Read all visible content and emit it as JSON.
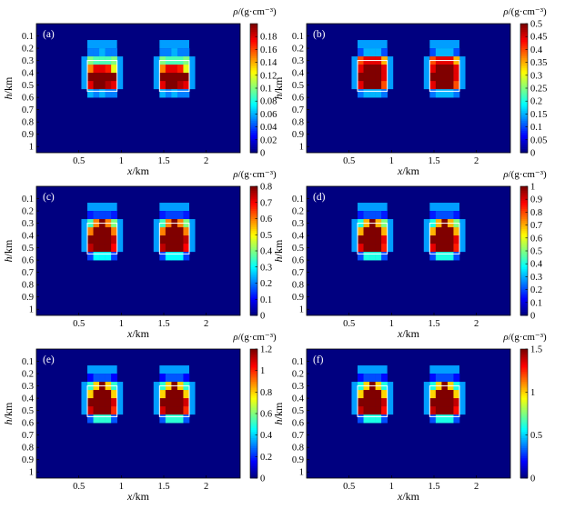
{
  "chart_data": {
    "type": "heatmap",
    "colormap": "jet",
    "grid": false,
    "xlabel": "x/km",
    "ylabel": "h/km",
    "x_ticks": [
      0.5,
      1,
      1.5,
      2
    ],
    "x_tick_labels": [
      "0.5",
      "1",
      "1.5",
      "2"
    ],
    "y_ticks": [
      0.1,
      0.2,
      0.3,
      0.4,
      0.5,
      0.6,
      0.7,
      0.8,
      0.9,
      1
    ],
    "y_tick_labels": [
      "0.1",
      "0.2",
      "0.3",
      "0.4",
      "0.5",
      "0.6",
      "0.7",
      "0.8",
      "0.9",
      "1"
    ],
    "xlim": [
      0,
      2.4
    ],
    "ylim": [
      1.05,
      0
    ],
    "colorbar_label": "ρ/(g·cm⁻³)",
    "model_boxes": [
      {
        "x": [
          0.6,
          0.95
        ],
        "h": [
          0.3,
          0.55
        ]
      },
      {
        "x": [
          1.45,
          1.8
        ],
        "h": [
          0.3,
          0.55
        ]
      }
    ],
    "panels": [
      {
        "label": "(a)",
        "clim": [
          0,
          0.2
        ],
        "colorbar_ticks": [
          0,
          0.02,
          0.04,
          0.06,
          0.08,
          0.1,
          0.12,
          0.14,
          0.16,
          0.18
        ],
        "colorbar_tick_labels": [
          "0",
          "0.02",
          "0.04",
          "0.06",
          "0.08",
          "0.1",
          "0.12",
          "0.14",
          "0.16",
          "0.18"
        ],
        "anomalies": [
          {
            "x0": 0.6,
            "x1": 0.95,
            "h0": 0.2,
            "h1": 0.6,
            "rows": [
              [
                0.05,
                0.05,
                0.06,
                0.05,
                0.05
              ],
              [
                0.1,
                0.09,
                0.09,
                0.09,
                0.1
              ],
              [
                0.15,
                0.18,
                0.18,
                0.17,
                0.12
              ],
              [
                0.2,
                0.2,
                0.2,
                0.2,
                0.2
              ],
              [
                0.18,
                0.2,
                0.2,
                0.19,
                0.18
              ],
              [
                0.06,
                0.05,
                0.06,
                0.05,
                0.05
              ]
            ]
          },
          {
            "x0": 1.45,
            "x1": 1.8,
            "h0": 0.2,
            "h1": 0.6,
            "rows": [
              [
                0.05,
                0.05,
                0.06,
                0.05,
                0.05
              ],
              [
                0.1,
                0.09,
                0.09,
                0.09,
                0.1
              ],
              [
                0.15,
                0.18,
                0.18,
                0.17,
                0.12
              ],
              [
                0.2,
                0.2,
                0.2,
                0.2,
                0.2
              ],
              [
                0.18,
                0.2,
                0.2,
                0.19,
                0.18
              ],
              [
                0.06,
                0.05,
                0.06,
                0.05,
                0.05
              ]
            ]
          }
        ]
      },
      {
        "label": "(b)",
        "clim": [
          0,
          0.5
        ],
        "colorbar_ticks": [
          0,
          0.05,
          0.1,
          0.15,
          0.2,
          0.25,
          0.3,
          0.35,
          0.4,
          0.45,
          0.5
        ],
        "colorbar_tick_labels": [
          "0",
          "0.05",
          "0.1",
          "0.15",
          "0.2",
          "0.25",
          "0.3",
          "0.35",
          "0.4",
          "0.45",
          "0.5"
        ],
        "anomalies": [
          {
            "x0": 0.6,
            "x1": 0.95,
            "h0": 0.2,
            "h1": 0.6,
            "rows": [
              [
                0.1,
                0.15,
                0.15,
                0.15,
                0.1
              ],
              [
                0.4,
                0.45,
                0.45,
                0.45,
                0.35
              ],
              [
                0.45,
                0.5,
                0.5,
                0.5,
                0.45
              ],
              [
                0.5,
                0.5,
                0.5,
                0.5,
                0.45
              ],
              [
                0.45,
                0.5,
                0.5,
                0.5,
                0.4
              ],
              [
                0.12,
                0.15,
                0.15,
                0.15,
                0.12
              ]
            ]
          },
          {
            "x0": 1.45,
            "x1": 1.8,
            "h0": 0.2,
            "h1": 0.6,
            "rows": [
              [
                0.1,
                0.15,
                0.15,
                0.15,
                0.1
              ],
              [
                0.4,
                0.45,
                0.45,
                0.45,
                0.35
              ],
              [
                0.45,
                0.5,
                0.5,
                0.5,
                0.45
              ],
              [
                0.5,
                0.5,
                0.5,
                0.5,
                0.45
              ],
              [
                0.45,
                0.5,
                0.5,
                0.5,
                0.4
              ],
              [
                0.12,
                0.15,
                0.15,
                0.15,
                0.12
              ]
            ]
          }
        ]
      },
      {
        "label": "(c)",
        "clim": [
          0,
          0.8
        ],
        "colorbar_ticks": [
          0,
          0.1,
          0.2,
          0.3,
          0.4,
          0.5,
          0.6,
          0.7,
          0.8
        ],
        "colorbar_tick_labels": [
          "0",
          "0.1",
          "0.2",
          "0.3",
          "0.4",
          "0.5",
          "0.6",
          "0.7",
          "0.8"
        ],
        "anomalies": [
          {
            "x0": 0.6,
            "x1": 0.95,
            "h0": 0.2,
            "h1": 0.6,
            "rows": [
              [
                0.12,
                0.15,
                0.15,
                0.15,
                0.12
              ],
              [
                0.35,
                0.6,
                0.8,
                0.6,
                0.4
              ],
              [
                0.6,
                0.8,
                0.8,
                0.8,
                0.6
              ],
              [
                0.8,
                0.8,
                0.8,
                0.8,
                0.75
              ],
              [
                0.75,
                0.8,
                0.8,
                0.8,
                0.7
              ],
              [
                0.15,
                0.3,
                0.3,
                0.3,
                0.15
              ]
            ]
          },
          {
            "x0": 1.45,
            "x1": 1.8,
            "h0": 0.2,
            "h1": 0.6,
            "rows": [
              [
                0.12,
                0.15,
                0.15,
                0.15,
                0.12
              ],
              [
                0.35,
                0.6,
                0.8,
                0.6,
                0.4
              ],
              [
                0.6,
                0.8,
                0.8,
                0.8,
                0.6
              ],
              [
                0.8,
                0.8,
                0.8,
                0.8,
                0.75
              ],
              [
                0.75,
                0.8,
                0.8,
                0.8,
                0.7
              ],
              [
                0.15,
                0.3,
                0.3,
                0.3,
                0.15
              ]
            ]
          }
        ]
      },
      {
        "label": "(d)",
        "clim": [
          0,
          1
        ],
        "colorbar_ticks": [
          0,
          0.1,
          0.2,
          0.3,
          0.4,
          0.5,
          0.6,
          0.7,
          0.8,
          0.9,
          1
        ],
        "colorbar_tick_labels": [
          "0",
          "0.1",
          "0.2",
          "0.3",
          "0.4",
          "0.5",
          "0.6",
          "0.7",
          "0.8",
          "0.9",
          "1"
        ],
        "anomalies": [
          {
            "x0": 0.6,
            "x1": 0.95,
            "h0": 0.2,
            "h1": 0.6,
            "rows": [
              [
                0.15,
                0.2,
                0.2,
                0.2,
                0.15
              ],
              [
                0.4,
                0.7,
                1,
                0.7,
                0.5
              ],
              [
                0.7,
                1,
                1,
                1,
                0.7
              ],
              [
                1,
                1,
                1,
                1,
                0.9
              ],
              [
                0.9,
                1,
                1,
                1,
                0.85
              ],
              [
                0.2,
                0.4,
                0.4,
                0.4,
                0.2
              ]
            ]
          },
          {
            "x0": 1.45,
            "x1": 1.8,
            "h0": 0.2,
            "h1": 0.6,
            "rows": [
              [
                0.15,
                0.2,
                0.2,
                0.2,
                0.15
              ],
              [
                0.4,
                0.7,
                1,
                0.7,
                0.5
              ],
              [
                0.7,
                1,
                1,
                1,
                0.7
              ],
              [
                1,
                1,
                1,
                1,
                0.9
              ],
              [
                0.9,
                1,
                1,
                1,
                0.85
              ],
              [
                0.2,
                0.4,
                0.4,
                0.4,
                0.2
              ]
            ]
          }
        ]
      },
      {
        "label": "(e)",
        "clim": [
          0,
          1.2
        ],
        "colorbar_ticks": [
          0,
          0.2,
          0.4,
          0.6,
          0.8,
          1,
          1.2
        ],
        "colorbar_tick_labels": [
          "0",
          "0.2",
          "0.4",
          "0.6",
          "0.8",
          "1",
          "1.2"
        ],
        "anomalies": [
          {
            "x0": 0.6,
            "x1": 0.95,
            "h0": 0.2,
            "h1": 0.6,
            "rows": [
              [
                0.15,
                0.25,
                0.25,
                0.25,
                0.15
              ],
              [
                0.5,
                0.8,
                1.2,
                0.8,
                0.5
              ],
              [
                0.8,
                1.2,
                1.2,
                1.2,
                0.8
              ],
              [
                1.2,
                1.2,
                1.2,
                1.2,
                1.1
              ],
              [
                1.1,
                1.2,
                1.2,
                1.2,
                1
              ],
              [
                0.25,
                0.5,
                0.5,
                0.5,
                0.25
              ]
            ]
          },
          {
            "x0": 1.45,
            "x1": 1.8,
            "h0": 0.2,
            "h1": 0.6,
            "rows": [
              [
                0.15,
                0.25,
                0.25,
                0.25,
                0.15
              ],
              [
                0.5,
                0.8,
                1.2,
                0.8,
                0.5
              ],
              [
                0.8,
                1.2,
                1.2,
                1.2,
                0.8
              ],
              [
                1.2,
                1.2,
                1.2,
                1.2,
                1.1
              ],
              [
                1.1,
                1.2,
                1.2,
                1.2,
                1
              ],
              [
                0.25,
                0.5,
                0.5,
                0.5,
                0.25
              ]
            ]
          }
        ]
      },
      {
        "label": "(f)",
        "clim": [
          0,
          1.5
        ],
        "colorbar_ticks": [
          0,
          0.5,
          1,
          1.5
        ],
        "colorbar_tick_labels": [
          "0",
          "0.5",
          "1",
          "1.5"
        ],
        "anomalies": [
          {
            "x0": 0.6,
            "x1": 0.95,
            "h0": 0.2,
            "h1": 0.6,
            "rows": [
              [
                0.2,
                0.3,
                0.3,
                0.3,
                0.2
              ],
              [
                0.6,
                1,
                1.5,
                1,
                0.6
              ],
              [
                1,
                1.5,
                1.5,
                1.5,
                1
              ],
              [
                1.5,
                1.5,
                1.5,
                1.5,
                1.4
              ],
              [
                1.4,
                1.5,
                1.5,
                1.5,
                1.3
              ],
              [
                0.3,
                0.6,
                0.6,
                0.6,
                0.3
              ]
            ]
          },
          {
            "x0": 1.45,
            "x1": 1.8,
            "h0": 0.2,
            "h1": 0.6,
            "rows": [
              [
                0.2,
                0.3,
                0.3,
                0.3,
                0.2
              ],
              [
                0.6,
                1,
                1.5,
                1,
                0.6
              ],
              [
                1,
                1.5,
                1.5,
                1.5,
                1
              ],
              [
                1.5,
                1.5,
                1.5,
                1.5,
                1.4
              ],
              [
                1.4,
                1.5,
                1.5,
                1.5,
                1.3
              ],
              [
                0.3,
                0.6,
                0.6,
                0.6,
                0.3
              ]
            ]
          }
        ]
      }
    ]
  }
}
